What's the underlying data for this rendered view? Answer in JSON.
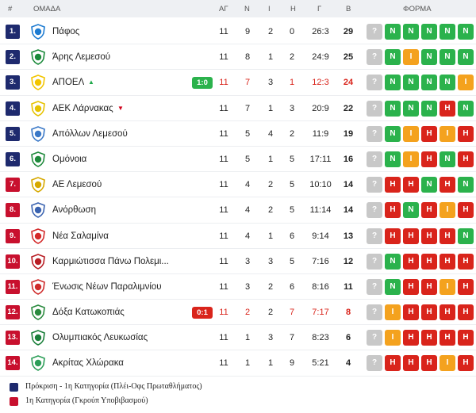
{
  "header": {
    "rank": "#",
    "team": "ΟΜΑΔΑ",
    "played": "ΑΓ",
    "wins": "Ν",
    "draws": "Ι",
    "losses": "Η",
    "goals": "Γ",
    "points": "Β",
    "form": "ΦΟΡΜΑ"
  },
  "colors": {
    "qualification": "#1e2a6e",
    "relegation": "#c8102e",
    "win": "#2bb24c",
    "draw": "#f4a21e",
    "loss": "#d9241b",
    "upcoming": "#c8c8c8"
  },
  "rows": [
    {
      "rank": "1.",
      "zone": "q",
      "team": "Πάφος",
      "crest": "pafos-crest-icon",
      "crest_color": "#1d7bd1",
      "live": null,
      "played": "11",
      "wins": "9",
      "draws": "2",
      "losses": "0",
      "goals": "26:3",
      "points": "29",
      "highlight": false,
      "trend": null,
      "form": [
        "?",
        "N",
        "N",
        "N",
        "N",
        "N"
      ]
    },
    {
      "rank": "2.",
      "zone": "q",
      "team": "Άρης Λεμεσού",
      "crest": "aris-crest-icon",
      "crest_color": "#1a8a3a",
      "live": null,
      "played": "11",
      "wins": "8",
      "draws": "1",
      "losses": "2",
      "goals": "24:9",
      "points": "25",
      "highlight": false,
      "trend": null,
      "form": [
        "?",
        "N",
        "I",
        "N",
        "N",
        "N"
      ]
    },
    {
      "rank": "3.",
      "zone": "q",
      "team": "ΑΠΟΕΛ",
      "crest": "apoel-crest-icon",
      "crest_color": "#f2c500",
      "live": {
        "score": "1:0",
        "color": "g"
      },
      "played": "11",
      "wins": "7",
      "draws": "3",
      "losses": "1",
      "goals": "12:3",
      "points": "24",
      "highlight": true,
      "trend": "up",
      "form": [
        "?",
        "N",
        "N",
        "N",
        "N",
        "I"
      ]
    },
    {
      "rank": "4.",
      "zone": "q",
      "team": "ΑΕΚ Λάρνακας",
      "crest": "aek-crest-icon",
      "crest_color": "#e6c200",
      "live": null,
      "played": "11",
      "wins": "7",
      "draws": "1",
      "losses": "3",
      "goals": "20:9",
      "points": "22",
      "highlight": false,
      "trend": "down",
      "form": [
        "?",
        "N",
        "N",
        "N",
        "H",
        "N"
      ]
    },
    {
      "rank": "5.",
      "zone": "q",
      "team": "Απόλλων Λεμεσού",
      "crest": "apollon-crest-icon",
      "crest_color": "#3a78c7",
      "live": null,
      "played": "11",
      "wins": "5",
      "draws": "4",
      "losses": "2",
      "goals": "11:9",
      "points": "19",
      "highlight": false,
      "trend": null,
      "form": [
        "?",
        "N",
        "I",
        "H",
        "I",
        "H"
      ]
    },
    {
      "rank": "6.",
      "zone": "q",
      "team": "Ομόνοια",
      "crest": "omonoia-crest-icon",
      "crest_color": "#1f8a3c",
      "live": null,
      "played": "11",
      "wins": "5",
      "draws": "1",
      "losses": "5",
      "goals": "17:11",
      "points": "16",
      "highlight": false,
      "trend": null,
      "form": [
        "?",
        "N",
        "I",
        "H",
        "N",
        "H"
      ]
    },
    {
      "rank": "7.",
      "zone": "r",
      "team": "ΑΕ Λεμεσού",
      "crest": "ael-crest-icon",
      "crest_color": "#d6a800",
      "live": null,
      "played": "11",
      "wins": "4",
      "draws": "2",
      "losses": "5",
      "goals": "10:10",
      "points": "14",
      "highlight": false,
      "trend": null,
      "form": [
        "?",
        "H",
        "H",
        "N",
        "H",
        "N"
      ]
    },
    {
      "rank": "8.",
      "zone": "r",
      "team": "Ανόρθωση",
      "crest": "anorthosis-crest-icon",
      "crest_color": "#3b63b0",
      "live": null,
      "played": "11",
      "wins": "4",
      "draws": "2",
      "losses": "5",
      "goals": "11:14",
      "points": "14",
      "highlight": false,
      "trend": null,
      "form": [
        "?",
        "H",
        "N",
        "H",
        "I",
        "H"
      ]
    },
    {
      "rank": "9.",
      "zone": "r",
      "team": "Νέα Σαλαμίνα",
      "crest": "nea-salamina-crest-icon",
      "crest_color": "#d42a2a",
      "live": null,
      "played": "11",
      "wins": "4",
      "draws": "1",
      "losses": "6",
      "goals": "9:14",
      "points": "13",
      "highlight": false,
      "trend": null,
      "form": [
        "?",
        "H",
        "H",
        "H",
        "H",
        "N"
      ]
    },
    {
      "rank": "10.",
      "zone": "r",
      "team": "Καρμιώτισσα Πάνω Πολεμι...",
      "crest": "karmiotissa-crest-icon",
      "crest_color": "#b81d24",
      "live": null,
      "played": "11",
      "wins": "3",
      "draws": "3",
      "losses": "5",
      "goals": "7:16",
      "points": "12",
      "highlight": false,
      "trend": null,
      "form": [
        "?",
        "N",
        "H",
        "H",
        "H",
        "H"
      ]
    },
    {
      "rank": "11.",
      "zone": "r",
      "team": "Ένωσις Νέων Παραλιμνίου",
      "crest": "enp-crest-icon",
      "crest_color": "#cf2c2c",
      "live": null,
      "played": "11",
      "wins": "3",
      "draws": "2",
      "losses": "6",
      "goals": "8:16",
      "points": "11",
      "highlight": false,
      "trend": null,
      "form": [
        "?",
        "N",
        "H",
        "H",
        "I",
        "H"
      ]
    },
    {
      "rank": "12.",
      "zone": "r",
      "team": "Δόξα Κατωκοπιάς",
      "crest": "doxa-crest-icon",
      "crest_color": "#2a8a3e",
      "live": {
        "score": "0:1",
        "color": "r"
      },
      "played": "11",
      "wins": "2",
      "draws": "2",
      "losses": "7",
      "goals": "7:17",
      "points": "8",
      "highlight": true,
      "trend": null,
      "form": [
        "?",
        "I",
        "H",
        "H",
        "H",
        "H"
      ]
    },
    {
      "rank": "13.",
      "zone": "r",
      "team": "Ολυμπιακός Λευκωσίας",
      "crest": "olympiakos-crest-icon",
      "crest_color": "#1a7f3a",
      "live": null,
      "played": "11",
      "wins": "1",
      "draws": "3",
      "losses": "7",
      "goals": "8:23",
      "points": "6",
      "highlight": false,
      "trend": null,
      "form": [
        "?",
        "I",
        "H",
        "H",
        "H",
        "H"
      ]
    },
    {
      "rank": "14.",
      "zone": "r",
      "team": "Ακρίτας Χλώρακα",
      "crest": "akritas-crest-icon",
      "crest_color": "#2b9d57",
      "live": null,
      "played": "11",
      "wins": "1",
      "draws": "1",
      "losses": "9",
      "goals": "5:21",
      "points": "4",
      "highlight": false,
      "trend": null,
      "form": [
        "?",
        "H",
        "H",
        "H",
        "I",
        "H"
      ]
    }
  ],
  "legend": [
    {
      "zone": "q",
      "text": "Πρόκριση - 1η Κατηγορία (Πλέι-Οφς Πρωταθλήματος)"
    },
    {
      "zone": "r",
      "text": "1η Κατηγορία (Γκρούπ Υποβιβασμού)"
    }
  ]
}
